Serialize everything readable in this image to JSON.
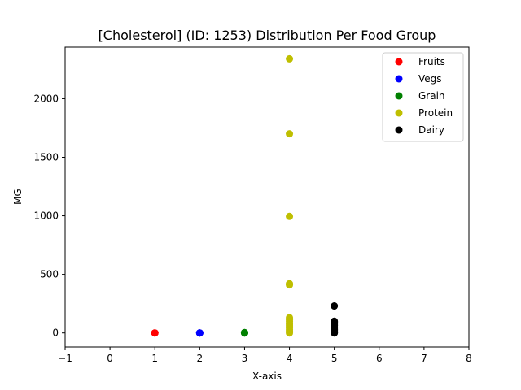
{
  "chart_data": {
    "type": "scatter",
    "title": "[Cholesterol] (ID: 1253) Distribution Per Food Group",
    "xlabel": "X-axis",
    "ylabel": "MG",
    "xlim": [
      -1,
      8
    ],
    "ylim": [
      -120,
      2440
    ],
    "xticks": [
      -1,
      0,
      1,
      2,
      3,
      4,
      5,
      6,
      7,
      8
    ],
    "yticks": [
      0,
      500,
      1000,
      1500,
      2000
    ],
    "grid": false,
    "legend_position": "top-right",
    "series": [
      {
        "name": "Fruits",
        "color": "#ff0000",
        "x": [
          1,
          1,
          1
        ],
        "y": [
          0,
          0,
          0
        ]
      },
      {
        "name": "Vegs",
        "color": "#0000ff",
        "x": [
          2,
          2,
          2
        ],
        "y": [
          0,
          0,
          0
        ]
      },
      {
        "name": "Grain",
        "color": "#008000",
        "x": [
          3,
          3,
          3,
          3
        ],
        "y": [
          0,
          0,
          2,
          3
        ]
      },
      {
        "name": "Protein",
        "color": "#bfbf00",
        "x": [
          4,
          4,
          4,
          4,
          4,
          4,
          4,
          4,
          4,
          4,
          4,
          4,
          4,
          4,
          4
        ],
        "y": [
          2340,
          1700,
          995,
          420,
          410,
          130,
          115,
          100,
          85,
          75,
          60,
          45,
          30,
          15,
          0
        ]
      },
      {
        "name": "Dairy",
        "color": "#000000",
        "x": [
          5,
          5,
          5,
          5,
          5,
          5,
          5,
          5,
          5,
          5,
          5,
          5
        ],
        "y": [
          230,
          100,
          90,
          75,
          65,
          50,
          40,
          30,
          20,
          10,
          5,
          0
        ]
      }
    ]
  }
}
